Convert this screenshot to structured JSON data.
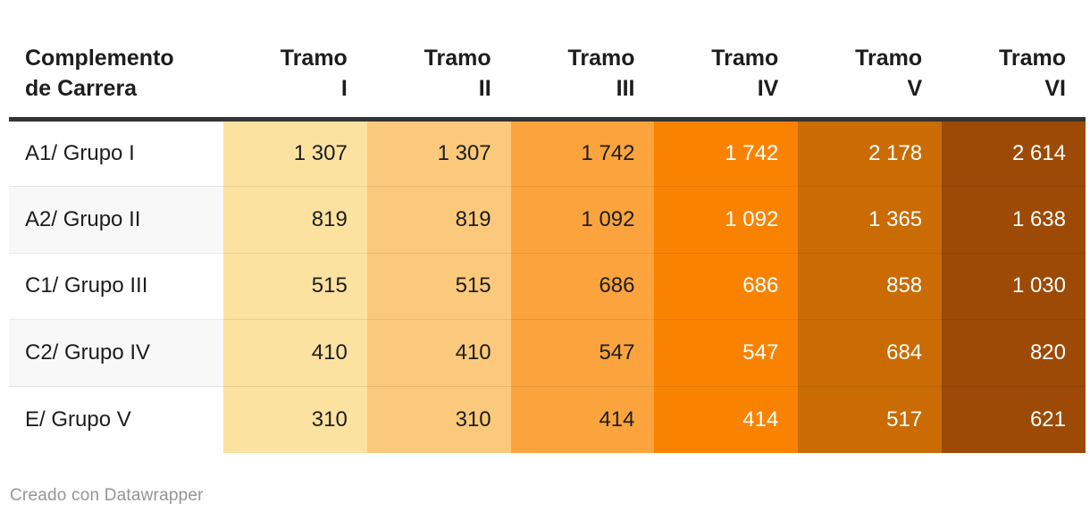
{
  "header": {
    "label": {
      "line1": "Complemento",
      "line2": "de Carrera"
    },
    "columns": [
      {
        "word": "Tramo",
        "numeral": "I"
      },
      {
        "word": "Tramo",
        "numeral": "II"
      },
      {
        "word": "Tramo",
        "numeral": "III"
      },
      {
        "word": "Tramo",
        "numeral": "IV"
      },
      {
        "word": "Tramo",
        "numeral": "V"
      },
      {
        "word": "Tramo",
        "numeral": "VI"
      }
    ]
  },
  "rows": [
    {
      "label": "A1/ Grupo I",
      "display": [
        "1 307",
        "1 307",
        "1 742",
        "1 742",
        "2 178",
        "2 614"
      ]
    },
    {
      "label": "A2/ Grupo II",
      "display": [
        "819",
        "819",
        "1 092",
        "1 092",
        "1 365",
        "1 638"
      ]
    },
    {
      "label": "C1/ Grupo III",
      "display": [
        "515",
        "515",
        "686",
        "686",
        "858",
        "1 030"
      ]
    },
    {
      "label": "C2/ Grupo IV",
      "display": [
        "410",
        "410",
        "547",
        "547",
        "684",
        "820"
      ]
    },
    {
      "label": "E/ Grupo V",
      "display": [
        "310",
        "310",
        "414",
        "414",
        "517",
        "621"
      ]
    }
  ],
  "heatmap": {
    "column_colors": [
      "#FCE2A1",
      "#FAC97B",
      "#FBA43D",
      "#F98301",
      "#CA6B04",
      "#9D4A06"
    ],
    "column_text_colors": [
      "#1d1d1d",
      "#1d1d1d",
      "#1d1d1d",
      "#ffffff",
      "#ffffff",
      "#ffffff"
    ],
    "header_rule_color": "#333333"
  },
  "footer": {
    "attribution": "Creado con Datawrapper"
  },
  "chart_data": {
    "type": "heatmap",
    "title": "",
    "row_label_header": "Complemento de Carrera",
    "columns": [
      "Tramo I",
      "Tramo II",
      "Tramo III",
      "Tramo IV",
      "Tramo V",
      "Tramo VI"
    ],
    "rows": [
      "A1/ Grupo I",
      "A2/ Grupo II",
      "C1/ Grupo III",
      "C2/ Grupo IV",
      "E/ Grupo V"
    ],
    "values": [
      [
        1307,
        1307,
        1742,
        1742,
        2178,
        2614
      ],
      [
        819,
        819,
        1092,
        1092,
        1365,
        1638
      ],
      [
        515,
        515,
        686,
        686,
        858,
        1030
      ],
      [
        410,
        410,
        547,
        547,
        684,
        820
      ],
      [
        310,
        310,
        414,
        414,
        517,
        621
      ]
    ],
    "palette": [
      "#FCE2A1",
      "#FAC97B",
      "#FBA43D",
      "#F98301",
      "#CA6B04",
      "#9D4A06"
    ],
    "legend_position": "none",
    "grid": false
  }
}
